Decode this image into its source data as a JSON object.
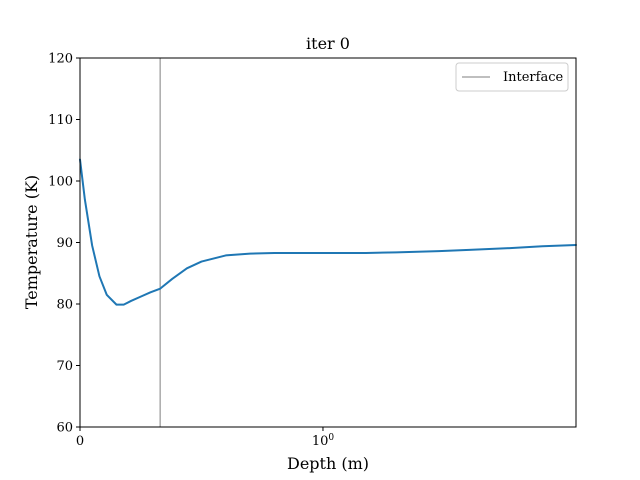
{
  "chart_data": {
    "type": "line",
    "title": "iter 0",
    "xlabel": "Depth (m)",
    "ylabel": "Temperature (K)",
    "xscale": "symlog",
    "xlim": [
      0,
      11
    ],
    "ylim": [
      60,
      120
    ],
    "x_ticks": [
      {
        "value": 0,
        "label": "0",
        "sup": ""
      },
      {
        "value": 1,
        "label": "10",
        "sup": "0"
      }
    ],
    "y_ticks": [
      60,
      70,
      80,
      90,
      100,
      110,
      120
    ],
    "grid": false,
    "legend_position": "top-right",
    "interface_depth": 0.33,
    "series": [
      {
        "name": "",
        "color": "#1f77b4",
        "x": [
          0,
          0.02,
          0.05,
          0.08,
          0.11,
          0.15,
          0.18,
          0.21,
          0.25,
          0.29,
          0.33,
          0.38,
          0.44,
          0.5,
          0.6,
          0.7,
          0.8,
          0.9,
          1.0,
          1.2,
          1.5,
          2.0,
          3.0,
          4.0,
          6.0,
          8.0,
          11.0
        ],
        "y": [
          103.5,
          97.0,
          89.5,
          84.5,
          81.5,
          79.9,
          79.9,
          80.5,
          81.2,
          81.9,
          82.5,
          84.1,
          85.8,
          86.9,
          87.9,
          88.2,
          88.3,
          88.3,
          88.3,
          88.3,
          88.3,
          88.4,
          88.6,
          88.8,
          89.1,
          89.4,
          89.6
        ]
      }
    ],
    "legend": [
      {
        "label": "Interface",
        "color": "#aaaaaa"
      }
    ]
  }
}
